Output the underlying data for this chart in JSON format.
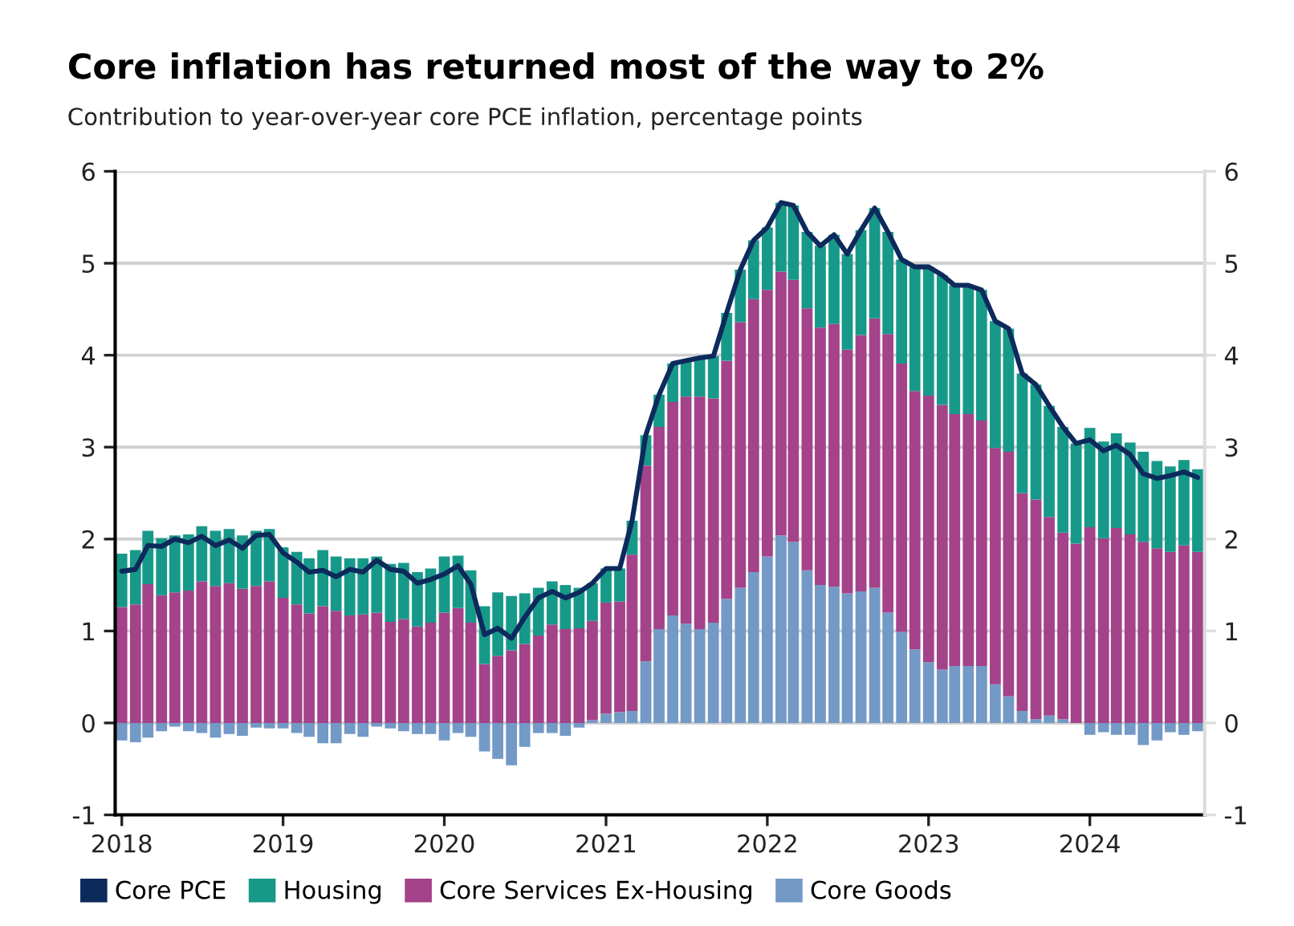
{
  "chart_data": {
    "type": "bar",
    "stacked": true,
    "title": "Core inflation has returned most of the way to 2%",
    "subtitle": "Contribution to year-over-year core PCE inflation, percentage points",
    "x": [
      "2018-01",
      "2018-02",
      "2018-03",
      "2018-04",
      "2018-05",
      "2018-06",
      "2018-07",
      "2018-08",
      "2018-09",
      "2018-10",
      "2018-11",
      "2018-12",
      "2019-01",
      "2019-02",
      "2019-03",
      "2019-04",
      "2019-05",
      "2019-06",
      "2019-07",
      "2019-08",
      "2019-09",
      "2019-10",
      "2019-11",
      "2019-12",
      "2020-01",
      "2020-02",
      "2020-03",
      "2020-04",
      "2020-05",
      "2020-06",
      "2020-07",
      "2020-08",
      "2020-09",
      "2020-10",
      "2020-11",
      "2020-12",
      "2021-01",
      "2021-02",
      "2021-03",
      "2021-04",
      "2021-05",
      "2021-06",
      "2021-07",
      "2021-08",
      "2021-09",
      "2021-10",
      "2021-11",
      "2021-12",
      "2022-01",
      "2022-02",
      "2022-03",
      "2022-04",
      "2022-05",
      "2022-06",
      "2022-07",
      "2022-08",
      "2022-09",
      "2022-10",
      "2022-11",
      "2022-12",
      "2023-01",
      "2023-02",
      "2023-03",
      "2023-04",
      "2023-05",
      "2023-06",
      "2023-07",
      "2023-08",
      "2023-09",
      "2023-10",
      "2023-11",
      "2023-12",
      "2024-01",
      "2024-02",
      "2024-03",
      "2024-04",
      "2024-05",
      "2024-06",
      "2024-07",
      "2024-08",
      "2024-09"
    ],
    "series": [
      {
        "name": "Core Goods",
        "color": "#7399c6",
        "values": [
          -0.19,
          -0.21,
          -0.16,
          -0.09,
          -0.04,
          -0.09,
          -0.11,
          -0.16,
          -0.12,
          -0.14,
          -0.05,
          -0.06,
          -0.06,
          -0.11,
          -0.15,
          -0.22,
          -0.22,
          -0.12,
          -0.15,
          -0.04,
          -0.06,
          -0.09,
          -0.12,
          -0.12,
          -0.19,
          -0.11,
          -0.15,
          -0.31,
          -0.39,
          -0.46,
          -0.26,
          -0.11,
          -0.11,
          -0.14,
          -0.05,
          0.03,
          0.1,
          0.12,
          0.13,
          0.67,
          1.02,
          1.17,
          1.08,
          1.02,
          1.09,
          1.35,
          1.47,
          1.64,
          1.81,
          2.04,
          1.97,
          1.66,
          1.5,
          1.48,
          1.41,
          1.43,
          1.47,
          1.2,
          0.99,
          0.8,
          0.66,
          0.58,
          0.62,
          0.62,
          0.62,
          0.42,
          0.29,
          0.13,
          0.04,
          0.08,
          0.04,
          0.0,
          -0.13,
          -0.1,
          -0.13,
          -0.13,
          -0.24,
          -0.19,
          -0.1,
          -0.13,
          -0.09
        ]
      },
      {
        "name": "Core Services Ex-Housing",
        "color": "#a4428a",
        "values": [
          1.26,
          1.29,
          1.51,
          1.39,
          1.42,
          1.44,
          1.54,
          1.49,
          1.52,
          1.46,
          1.49,
          1.54,
          1.36,
          1.29,
          1.19,
          1.27,
          1.22,
          1.17,
          1.18,
          1.2,
          1.1,
          1.13,
          1.05,
          1.09,
          1.2,
          1.25,
          1.09,
          0.64,
          0.73,
          0.79,
          0.86,
          0.95,
          1.07,
          1.02,
          1.03,
          1.08,
          1.21,
          1.2,
          1.7,
          2.13,
          2.2,
          2.32,
          2.47,
          2.53,
          2.44,
          2.59,
          2.89,
          2.97,
          2.9,
          2.87,
          2.85,
          2.85,
          2.8,
          2.86,
          2.65,
          2.79,
          2.93,
          3.03,
          2.92,
          2.81,
          2.9,
          2.88,
          2.74,
          2.74,
          2.67,
          2.57,
          2.66,
          2.37,
          2.39,
          2.16,
          2.03,
          1.95,
          2.13,
          2.01,
          2.12,
          2.05,
          1.97,
          1.9,
          1.86,
          1.93,
          1.86
        ]
      },
      {
        "name": "Housing",
        "color": "#17998a",
        "values": [
          0.58,
          0.59,
          0.58,
          0.62,
          0.62,
          0.61,
          0.6,
          0.6,
          0.59,
          0.58,
          0.6,
          0.57,
          0.55,
          0.57,
          0.6,
          0.61,
          0.59,
          0.62,
          0.61,
          0.61,
          0.63,
          0.61,
          0.59,
          0.59,
          0.61,
          0.57,
          0.57,
          0.63,
          0.69,
          0.59,
          0.55,
          0.52,
          0.47,
          0.48,
          0.44,
          0.41,
          0.37,
          0.36,
          0.37,
          0.33,
          0.35,
          0.42,
          0.39,
          0.42,
          0.46,
          0.52,
          0.57,
          0.64,
          0.68,
          0.75,
          0.81,
          0.83,
          0.89,
          0.97,
          1.04,
          1.14,
          1.2,
          1.11,
          1.13,
          1.35,
          1.4,
          1.41,
          1.4,
          1.4,
          1.42,
          1.38,
          1.34,
          1.3,
          1.25,
          1.21,
          1.15,
          1.09,
          1.08,
          1.05,
          1.03,
          1.0,
          0.98,
          0.95,
          0.93,
          0.93,
          0.9
        ]
      },
      {
        "name": "Core PCE",
        "type": "line",
        "color": "#0d2a5c",
        "values": [
          1.65,
          1.67,
          1.93,
          1.92,
          2.0,
          1.96,
          2.03,
          1.93,
          1.99,
          1.9,
          2.04,
          2.05,
          1.85,
          1.75,
          1.64,
          1.66,
          1.59,
          1.67,
          1.64,
          1.77,
          1.67,
          1.65,
          1.52,
          1.56,
          1.62,
          1.71,
          1.51,
          0.96,
          1.03,
          0.92,
          1.15,
          1.36,
          1.43,
          1.36,
          1.42,
          1.52,
          1.68,
          1.68,
          2.2,
          3.13,
          3.57,
          3.91,
          3.94,
          3.97,
          3.99,
          4.46,
          4.93,
          5.25,
          5.39,
          5.66,
          5.63,
          5.34,
          5.19,
          5.31,
          5.1,
          5.36,
          5.6,
          5.34,
          5.04,
          4.96,
          4.96,
          4.87,
          4.76,
          4.76,
          4.71,
          4.37,
          4.29,
          3.8,
          3.68,
          3.45,
          3.22,
          3.04,
          3.08,
          2.96,
          3.02,
          2.92,
          2.71,
          2.66,
          2.69,
          2.73,
          2.67
        ]
      }
    ],
    "xlim": [
      "2017-12-17",
      "2024-09-17"
    ],
    "xticks": [
      "2018",
      "2019",
      "2020",
      "2021",
      "2022",
      "2023",
      "2024"
    ],
    "ylim": [
      -1,
      6
    ],
    "yticks": [
      -1,
      0,
      1,
      2,
      3,
      4,
      5,
      6
    ],
    "y2lim": [
      -1,
      6
    ],
    "y2ticks": [
      -1,
      0,
      1,
      2,
      3,
      4,
      5,
      6
    ],
    "grid": "y",
    "legend": "bottom",
    "line_style": "solid"
  }
}
